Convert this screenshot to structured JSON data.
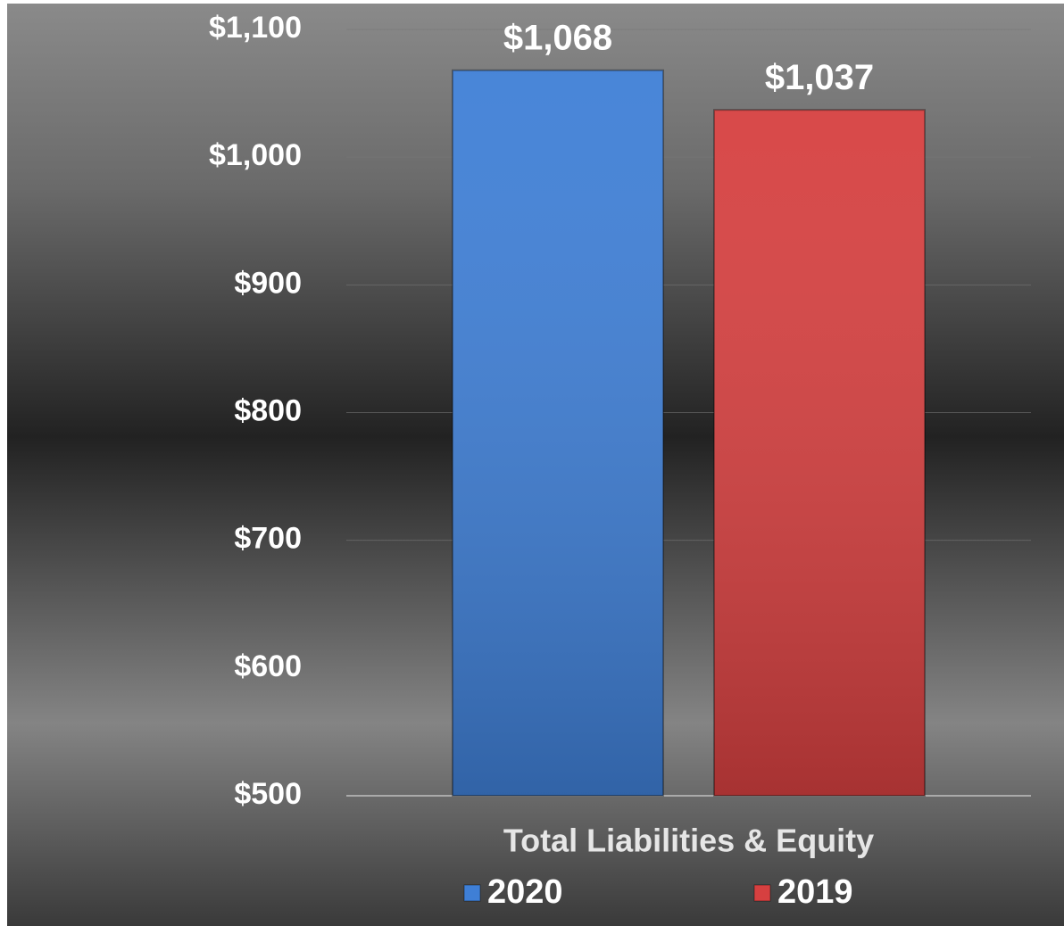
{
  "chart_data": {
    "type": "bar",
    "categories": [
      "Total Liabilities & Equity"
    ],
    "series": [
      {
        "name": "2020",
        "color": "#3f7fd6",
        "values": [
          1068
        ],
        "value_labels": [
          "$1,068"
        ]
      },
      {
        "name": "2019",
        "color": "#d64040",
        "values": [
          1037
        ],
        "value_labels": [
          "$1,037"
        ]
      }
    ],
    "ylim": [
      500,
      1100
    ],
    "yticks": [
      {
        "value": 500,
        "label": "$500"
      },
      {
        "value": 600,
        "label": "$600"
      },
      {
        "value": 700,
        "label": "$700"
      },
      {
        "value": 800,
        "label": "$800"
      },
      {
        "value": 900,
        "label": "$900"
      },
      {
        "value": 1000,
        "label": "$1,000"
      },
      {
        "value": 1100,
        "label": "$1,100"
      }
    ],
    "grid": true,
    "legend": "bottom"
  }
}
